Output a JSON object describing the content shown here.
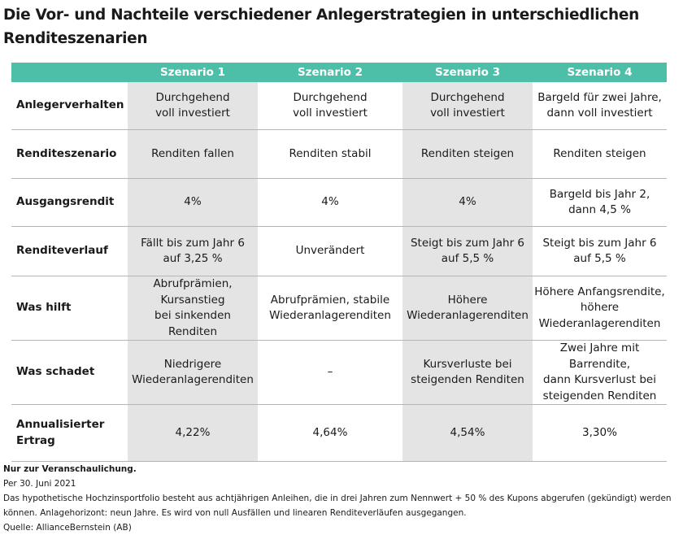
{
  "title": {
    "line1": "Die Vor- und Nachteile verschiedener Anlegerstrategien in unterschiedlichen",
    "line2": "Renditeszenarien"
  },
  "colors": {
    "header_bg": "#4dbfa9",
    "header_text": "#ffffff",
    "shaded_column": "#e4e4e4",
    "row_divider": "#b5b5b5"
  },
  "table": {
    "headers": [
      "",
      "Szenario 1",
      "Szenario 2",
      "Szenario 3",
      "Szenario 4"
    ],
    "rows": [
      {
        "label": "Anlegerverhalten",
        "cells": [
          "Durchgehend\nvoll investiert",
          "Durchgehend\nvoll investiert",
          "Durchgehend\nvoll investiert",
          "Bargeld für zwei Jahre,\ndann voll investiert"
        ]
      },
      {
        "label": "Renditeszenario",
        "cells": [
          "Renditen fallen",
          "Renditen stabil",
          "Renditen steigen",
          "Renditen steigen"
        ]
      },
      {
        "label": "Ausgangsrendit",
        "cells": [
          "4%",
          "4%",
          "4%",
          "Bargeld bis Jahr 2,\ndann 4,5 %"
        ]
      },
      {
        "label": "Renditeverlauf",
        "cells": [
          "Fällt bis zum Jahr 6\nauf 3,25 %",
          "Unverändert",
          "Steigt bis zum Jahr 6\nauf 5,5 %",
          "Steigt bis zum Jahr 6\nauf 5,5 %"
        ]
      },
      {
        "label": "Was hilft",
        "cells": [
          "Abrufprämien,\nKursanstieg\nbei sinkenden Renditen",
          "Abrufprämien, stabile\nWiederanlagerenditen",
          "Höhere\nWiederanlagerenditen",
          "Höhere Anfangsrendite,\nhöhere\nWiederanlagerenditen"
        ]
      },
      {
        "label": "Was schadet",
        "cells": [
          "Niedrigere\nWiederanlagerenditen",
          "–",
          "Kursverluste bei\nsteigenden Renditen",
          "Zwei Jahre mit\nBarrendite,\ndann Kursverlust bei\nsteigenden Renditen"
        ]
      },
      {
        "label": "Annualisierter\nErtrag",
        "cells": [
          "4,22%",
          "4,64%",
          "4,54%",
          "3,30%"
        ]
      }
    ]
  },
  "notes": {
    "bold": "Nur zur Veranschaulichung.",
    "date": "Per 30. Juni 2021",
    "text1": "Das hypothetische Hochzinsportfolio besteht aus achtjährigen Anleihen, die in drei Jahren zum Nennwert + 50 % des Kupons abgerufen (gekündigt) werden",
    "text2": "können. Anlagehorizont: neun Jahre. Es wird von null Ausfällen und linearen Renditeverläufen ausgegangen.",
    "source": "Quelle: AllianceBernstein (AB)"
  }
}
